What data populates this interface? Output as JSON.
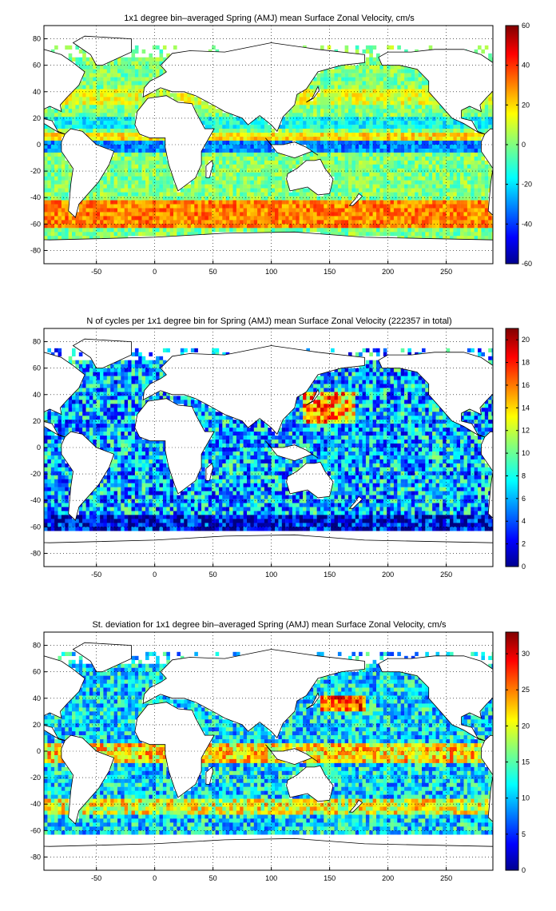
{
  "chart_data": [
    {
      "type": "heatmap",
      "title": "1x1 degree bin–averaged Spring (AMJ) mean Surface Zonal Velocity, cm/s",
      "xlabel": "",
      "ylabel": "",
      "xlim": [
        -95,
        290
      ],
      "ylim": [
        -90,
        90
      ],
      "x_ticks": [
        -50,
        0,
        50,
        100,
        150,
        200,
        250
      ],
      "y_ticks": [
        80,
        60,
        40,
        20,
        0,
        -20,
        -40,
        -60,
        -80
      ],
      "grid": true,
      "colorbar": {
        "colormap": "jet",
        "range": [
          -60,
          60
        ],
        "ticks": [
          60,
          40,
          20,
          0,
          -20,
          -40,
          -60
        ]
      }
    },
    {
      "type": "heatmap",
      "title": "N of cycles per 1x1 degree bin for Spring (AMJ) mean Surface Zonal Velocity (222357 in total)",
      "xlabel": "",
      "ylabel": "",
      "xlim": [
        -95,
        290
      ],
      "ylim": [
        -90,
        90
      ],
      "x_ticks": [
        -50,
        0,
        50,
        100,
        150,
        200,
        250
      ],
      "y_ticks": [
        80,
        60,
        40,
        20,
        0,
        -20,
        -40,
        -60,
        -80
      ],
      "grid": true,
      "colorbar": {
        "colormap": "jet",
        "range": [
          0,
          21
        ],
        "ticks": [
          20,
          18,
          16,
          14,
          12,
          10,
          8,
          6,
          4,
          2,
          0
        ]
      }
    },
    {
      "type": "heatmap",
      "title": "St. deviation for 1x1 degree bin–averaged Spring (AMJ) mean Surface Zonal Velocity, cm/s",
      "xlabel": "",
      "ylabel": "",
      "xlim": [
        -95,
        290
      ],
      "ylim": [
        -90,
        90
      ],
      "x_ticks": [
        -50,
        0,
        50,
        100,
        150,
        200,
        250
      ],
      "y_ticks": [
        80,
        60,
        40,
        20,
        0,
        -20,
        -40,
        -60,
        -80
      ],
      "grid": true,
      "colorbar": {
        "colormap": "jet",
        "range": [
          0,
          33
        ],
        "ticks": [
          30,
          25,
          20,
          15,
          10,
          5,
          0
        ]
      }
    }
  ]
}
